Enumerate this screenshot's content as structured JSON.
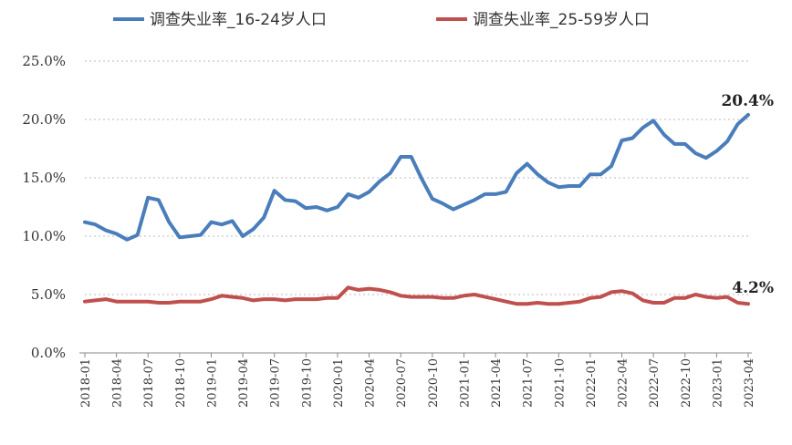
{
  "chart_data": {
    "type": "line",
    "title": "",
    "xlabel": "",
    "ylabel": "",
    "ylim": [
      0,
      25
    ],
    "yticks": [
      "0.0%",
      "5.0%",
      "10.0%",
      "15.0%",
      "20.0%",
      "25.0%"
    ],
    "ytick_values": [
      0,
      5,
      10,
      15,
      20,
      25
    ],
    "grid": "horizontal dotted",
    "legend": "top",
    "x": [
      "2018-01",
      "2018-02",
      "2018-03",
      "2018-04",
      "2018-05",
      "2018-06",
      "2018-07",
      "2018-08",
      "2018-09",
      "2018-10",
      "2018-11",
      "2018-12",
      "2019-01",
      "2019-02",
      "2019-03",
      "2019-04",
      "2019-05",
      "2019-06",
      "2019-07",
      "2019-08",
      "2019-09",
      "2019-10",
      "2019-11",
      "2019-12",
      "2020-01",
      "2020-02",
      "2020-03",
      "2020-04",
      "2020-05",
      "2020-06",
      "2020-07",
      "2020-08",
      "2020-09",
      "2020-10",
      "2020-11",
      "2020-12",
      "2021-01",
      "2021-02",
      "2021-03",
      "2021-04",
      "2021-05",
      "2021-06",
      "2021-07",
      "2021-08",
      "2021-09",
      "2021-10",
      "2021-11",
      "2021-12",
      "2022-01",
      "2022-02",
      "2022-03",
      "2022-04",
      "2022-05",
      "2022-06",
      "2022-07",
      "2022-08",
      "2022-09",
      "2022-10",
      "2022-11",
      "2022-12",
      "2023-01",
      "2023-02",
      "2023-03",
      "2023-04"
    ],
    "xtick_every": 3,
    "series": [
      {
        "name": "调查失业率_16-24岁人口",
        "color": "#4a7ebb",
        "end_label": "20.4%",
        "values": [
          11.2,
          11.0,
          10.5,
          10.2,
          9.7,
          10.1,
          13.3,
          13.1,
          11.2,
          9.9,
          10.0,
          10.1,
          11.2,
          11.0,
          11.3,
          10.0,
          10.6,
          11.6,
          13.9,
          13.1,
          13.0,
          12.4,
          12.5,
          12.2,
          12.5,
          13.6,
          13.3,
          13.8,
          14.7,
          15.4,
          16.8,
          16.8,
          14.9,
          13.2,
          12.8,
          12.3,
          12.7,
          13.1,
          13.6,
          13.6,
          13.8,
          15.4,
          16.2,
          15.3,
          14.6,
          14.2,
          14.3,
          14.3,
          15.3,
          15.3,
          16.0,
          18.2,
          18.4,
          19.3,
          19.9,
          18.7,
          17.9,
          17.9,
          17.1,
          16.7,
          17.3,
          18.1,
          19.6,
          20.4
        ]
      },
      {
        "name": "调查失业率_25-59岁人口",
        "color": "#c0504d",
        "end_label": "4.2%",
        "values": [
          4.4,
          4.5,
          4.6,
          4.4,
          4.4,
          4.4,
          4.4,
          4.3,
          4.3,
          4.4,
          4.4,
          4.4,
          4.6,
          4.9,
          4.8,
          4.7,
          4.5,
          4.6,
          4.6,
          4.5,
          4.6,
          4.6,
          4.6,
          4.7,
          4.7,
          5.6,
          5.4,
          5.5,
          5.4,
          5.2,
          4.9,
          4.8,
          4.8,
          4.8,
          4.7,
          4.7,
          4.9,
          5.0,
          4.8,
          4.6,
          4.4,
          4.2,
          4.2,
          4.3,
          4.2,
          4.2,
          4.3,
          4.4,
          4.7,
          4.8,
          5.2,
          5.3,
          5.1,
          4.5,
          4.3,
          4.3,
          4.7,
          4.7,
          5.0,
          4.8,
          4.7,
          4.8,
          4.3,
          4.2
        ]
      }
    ]
  }
}
